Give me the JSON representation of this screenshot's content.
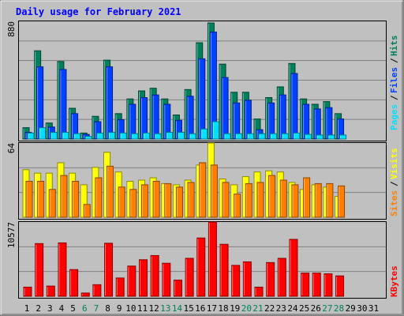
{
  "title": "Daily usage for February 2021",
  "colors": {
    "background": "#c0c0c0",
    "plot_background": "#c0c0c0",
    "title": "#0000ff",
    "hits": "#00805c",
    "files": "#0040ff",
    "pages": "#00e0ff",
    "visits": "#ffff00",
    "sites": "#ff8000",
    "kbytes": "#ff0000",
    "weekend_label": "#00805c",
    "weekday_label": "#000000"
  },
  "chart_data": [
    {
      "type": "bar",
      "panel": "hits-files-pages",
      "y_max_label": "880",
      "ylim": [
        0,
        880
      ],
      "legend": [
        "Pages",
        "Files",
        "Hits"
      ],
      "categories": [
        "1",
        "2",
        "3",
        "4",
        "5",
        "6",
        "7",
        "8",
        "9",
        "10",
        "11",
        "12",
        "13",
        "14",
        "15",
        "16",
        "17",
        "18",
        "19",
        "20",
        "21",
        "22",
        "23",
        "24",
        "25",
        "26",
        "27",
        "28",
        "29",
        "30",
        "31"
      ],
      "series": [
        {
          "name": "Hits",
          "values": [
            85,
            660,
            120,
            580,
            230,
            45,
            170,
            590,
            190,
            300,
            360,
            380,
            300,
            180,
            370,
            720,
            868,
            560,
            350,
            350,
            150,
            310,
            390,
            565,
            300,
            260,
            280,
            190,
            null,
            null,
            null
          ]
        },
        {
          "name": "Files",
          "values": [
            50,
            540,
            90,
            520,
            190,
            35,
            130,
            540,
            145,
            260,
            310,
            330,
            260,
            140,
            320,
            600,
            800,
            460,
            270,
            290,
            70,
            270,
            330,
            490,
            260,
            225,
            235,
            150,
            null,
            null,
            null
          ]
        },
        {
          "name": "Pages",
          "values": [
            45,
            85,
            50,
            50,
            40,
            20,
            45,
            50,
            45,
            40,
            45,
            40,
            50,
            50,
            40,
            75,
            130,
            40,
            40,
            40,
            40,
            40,
            40,
            45,
            35,
            30,
            30,
            30,
            null,
            null,
            null
          ]
        }
      ]
    },
    {
      "type": "bar",
      "panel": "visits-sites",
      "y_max_label": "64",
      "ylim": [
        0,
        64
      ],
      "legend": [
        "Sites",
        "Visits"
      ],
      "categories": [
        "1",
        "2",
        "3",
        "4",
        "5",
        "6",
        "7",
        "8",
        "9",
        "10",
        "11",
        "12",
        "13",
        "14",
        "15",
        "16",
        "17",
        "18",
        "19",
        "20",
        "21",
        "22",
        "23",
        "24",
        "25",
        "26",
        "27",
        "28",
        "29",
        "30",
        "31"
      ],
      "series": [
        {
          "name": "Visits",
          "values": [
            41,
            38,
            38,
            47,
            38,
            28,
            43,
            56,
            39,
            31,
            32,
            34,
            29,
            28,
            32,
            45,
            64,
            33,
            28,
            35,
            39,
            40,
            39,
            30,
            24,
            28,
            26,
            18,
            null,
            null,
            null
          ]
        },
        {
          "name": "Sites",
          "values": [
            31,
            31,
            24,
            36,
            31,
            11,
            34,
            44,
            26,
            24,
            28,
            31,
            29,
            26,
            30,
            47,
            45,
            30,
            20,
            29,
            30,
            36,
            32,
            28,
            34,
            29,
            29,
            27,
            null,
            null,
            null
          ]
        }
      ]
    },
    {
      "type": "bar",
      "panel": "kbytes",
      "y_max_label": "10577",
      "ylim": [
        0,
        10577
      ],
      "legend": [
        "KBytes"
      ],
      "categories": [
        "1",
        "2",
        "3",
        "4",
        "5",
        "6",
        "7",
        "8",
        "9",
        "10",
        "11",
        "12",
        "13",
        "14",
        "15",
        "16",
        "17",
        "18",
        "19",
        "20",
        "21",
        "22",
        "23",
        "24",
        "25",
        "26",
        "27",
        "28",
        "29",
        "30",
        "31"
      ],
      "series": [
        {
          "name": "KBytes",
          "values": [
            1300,
            7500,
            1450,
            7600,
            3800,
            460,
            1650,
            7550,
            2600,
            4300,
            5200,
            5800,
            4700,
            2300,
            5400,
            8300,
            10577,
            7400,
            4400,
            4900,
            1300,
            4800,
            5400,
            8100,
            3300,
            3300,
            3200,
            2900,
            null,
            null,
            null
          ]
        }
      ]
    }
  ],
  "x_labels": {
    "days": [
      "1",
      "2",
      "3",
      "4",
      "5",
      "6",
      "7",
      "8",
      "9",
      "10",
      "11",
      "12",
      "13",
      "14",
      "15",
      "16",
      "17",
      "18",
      "19",
      "20",
      "21",
      "22",
      "23",
      "24",
      "25",
      "26",
      "27",
      "28",
      "29",
      "30",
      "31"
    ],
    "weekend": [
      6,
      7,
      13,
      14,
      20,
      21,
      27,
      28
    ]
  }
}
